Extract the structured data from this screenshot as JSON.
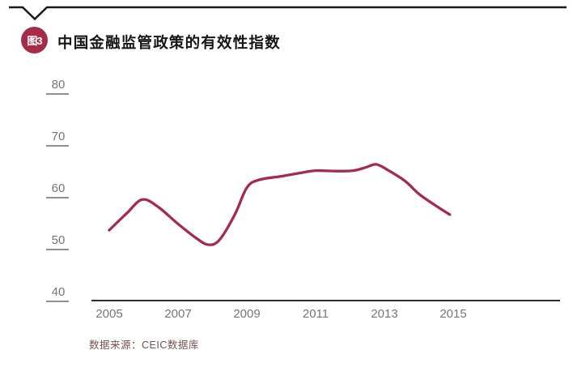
{
  "header": {
    "badge": "图3",
    "title": "中国金融监管政策的有效性指数"
  },
  "footer": {
    "source": "数据来源：CEIC数据库"
  },
  "colors": {
    "accent": "#A52B4A",
    "line": "#A42B4B",
    "rule": "#1b1b1b",
    "axis_text": "#767676",
    "axis_line": "#2e2e2e",
    "source_text": "#7a4f4f"
  },
  "chart_data": {
    "type": "line",
    "title": "中国金融监管政策的有效性指数",
    "xlabel": "",
    "ylabel": "",
    "x_ticks": [
      "2005",
      "2007",
      "2009",
      "2011",
      "2013",
      "2015"
    ],
    "y_ticks": [
      40,
      50,
      60,
      70,
      80
    ],
    "xlim": [
      2005,
      2015.2
    ],
    "ylim": [
      40,
      80
    ],
    "grid": false,
    "legend": false,
    "line_color": "#A42B4B",
    "series": [
      {
        "values_by_year": {
          "2005": 53.7,
          "2006": 59.5,
          "2007": 54.9,
          "2008": 51.2,
          "2009": 61.9,
          "2010": 64.1,
          "2011": 65.2,
          "2012": 65.2,
          "2013": 65.3,
          "2014": 60.7,
          "2015": 56.7
        },
        "points": [
          [
            2005.0,
            53.7
          ],
          [
            2005.5,
            56.9
          ],
          [
            2005.95,
            59.6
          ],
          [
            2006.4,
            58.3
          ],
          [
            2007.0,
            54.9
          ],
          [
            2007.5,
            52.3
          ],
          [
            2007.87,
            50.9
          ],
          [
            2008.2,
            51.8
          ],
          [
            2008.65,
            56.7
          ],
          [
            2009.0,
            61.9
          ],
          [
            2009.35,
            63.4
          ],
          [
            2010.0,
            64.1
          ],
          [
            2010.6,
            64.8
          ],
          [
            2011.0,
            65.2
          ],
          [
            2011.6,
            65.1
          ],
          [
            2012.1,
            65.2
          ],
          [
            2012.45,
            65.8
          ],
          [
            2012.76,
            66.4
          ],
          [
            2013.1,
            65.3
          ],
          [
            2013.6,
            63.2
          ],
          [
            2014.0,
            60.7
          ],
          [
            2014.5,
            58.4
          ],
          [
            2014.9,
            56.7
          ]
        ]
      }
    ]
  }
}
